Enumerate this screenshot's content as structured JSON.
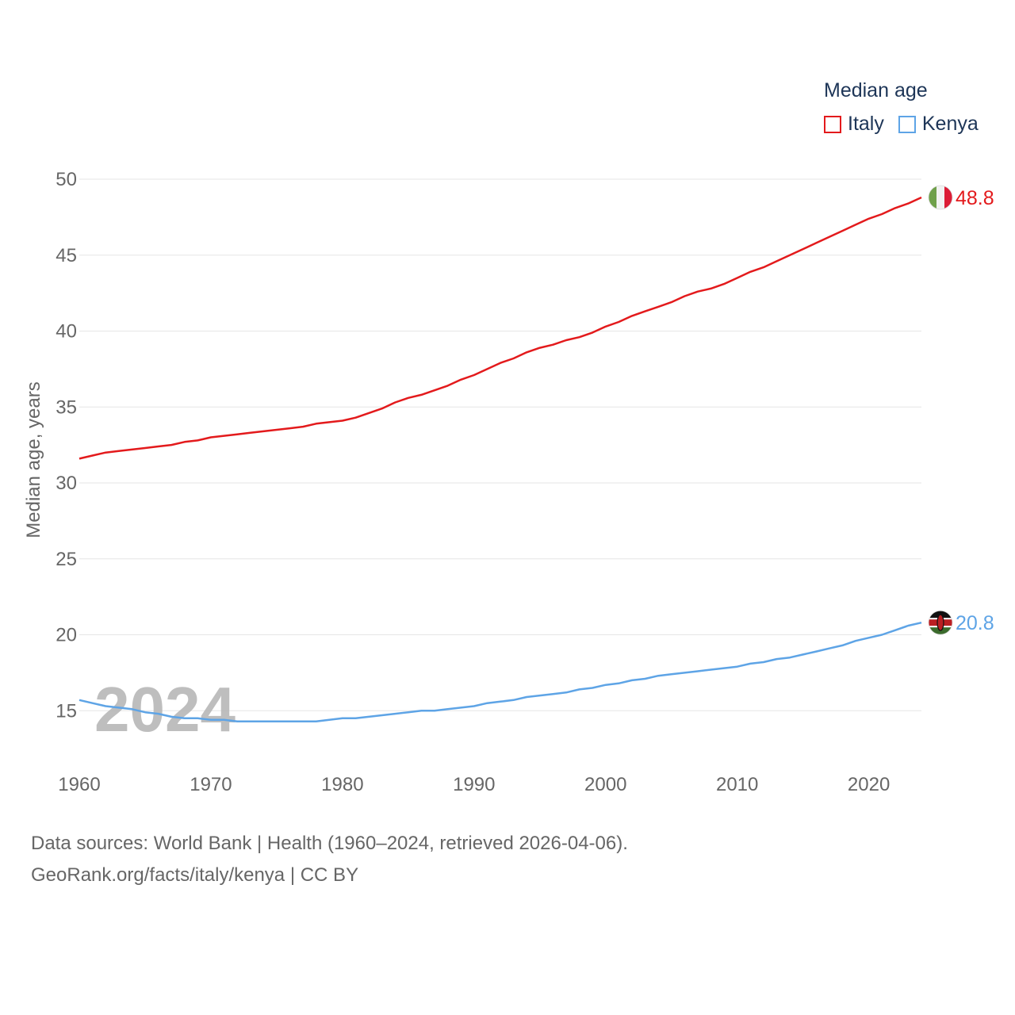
{
  "legend": {
    "title": "Median age",
    "items": [
      {
        "label": "Italy",
        "color": "#e31a1c"
      },
      {
        "label": "Kenya",
        "color": "#5ea4e6"
      }
    ]
  },
  "source": {
    "line1": "Data sources: World Bank | Health (1960–2024, retrieved 2026-04-06).",
    "line2": "GeoRank.org/facts/italy/kenya | CC BY"
  },
  "chart_data": {
    "type": "line",
    "title": "Median age",
    "ylabel": "Median age, years",
    "xlabel": "",
    "xlim": [
      1960,
      2024
    ],
    "ylim": [
      12,
      50
    ],
    "xticks": [
      1960,
      1970,
      1980,
      1990,
      2000,
      2010,
      2020
    ],
    "yticks": [
      15,
      20,
      25,
      30,
      35,
      40,
      45,
      50
    ],
    "year_watermark": "2024",
    "x": [
      1960,
      1961,
      1962,
      1963,
      1964,
      1965,
      1966,
      1967,
      1968,
      1969,
      1970,
      1971,
      1972,
      1973,
      1974,
      1975,
      1976,
      1977,
      1978,
      1979,
      1980,
      1981,
      1982,
      1983,
      1984,
      1985,
      1986,
      1987,
      1988,
      1989,
      1990,
      1991,
      1992,
      1993,
      1994,
      1995,
      1996,
      1997,
      1998,
      1999,
      2000,
      2001,
      2002,
      2003,
      2004,
      2005,
      2006,
      2007,
      2008,
      2009,
      2010,
      2011,
      2012,
      2013,
      2014,
      2015,
      2016,
      2017,
      2018,
      2019,
      2020,
      2021,
      2022,
      2023,
      2024
    ],
    "series": [
      {
        "name": "Italy",
        "color": "#e31a1c",
        "end_label": "48.8",
        "values": [
          31.6,
          31.8,
          32.0,
          32.1,
          32.2,
          32.3,
          32.4,
          32.5,
          32.7,
          32.8,
          33.0,
          33.1,
          33.2,
          33.3,
          33.4,
          33.5,
          33.6,
          33.7,
          33.9,
          34.0,
          34.1,
          34.3,
          34.6,
          34.9,
          35.3,
          35.6,
          35.8,
          36.1,
          36.4,
          36.8,
          37.1,
          37.5,
          37.9,
          38.2,
          38.6,
          38.9,
          39.1,
          39.4,
          39.6,
          39.9,
          40.3,
          40.6,
          41.0,
          41.3,
          41.6,
          41.9,
          42.3,
          42.6,
          42.8,
          43.1,
          43.5,
          43.9,
          44.2,
          44.6,
          45.0,
          45.4,
          45.8,
          46.2,
          46.6,
          47.0,
          47.4,
          47.7,
          48.1,
          48.4,
          48.8
        ]
      },
      {
        "name": "Kenya",
        "color": "#5ea4e6",
        "end_label": "20.8",
        "values": [
          15.7,
          15.5,
          15.3,
          15.2,
          15.1,
          14.9,
          14.8,
          14.6,
          14.5,
          14.5,
          14.4,
          14.4,
          14.3,
          14.3,
          14.3,
          14.3,
          14.3,
          14.3,
          14.3,
          14.4,
          14.5,
          14.5,
          14.6,
          14.7,
          14.8,
          14.9,
          15.0,
          15.0,
          15.1,
          15.2,
          15.3,
          15.5,
          15.6,
          15.7,
          15.9,
          16.0,
          16.1,
          16.2,
          16.4,
          16.5,
          16.7,
          16.8,
          17.0,
          17.1,
          17.3,
          17.4,
          17.5,
          17.6,
          17.7,
          17.8,
          17.9,
          18.1,
          18.2,
          18.4,
          18.5,
          18.7,
          18.9,
          19.1,
          19.3,
          19.6,
          19.8,
          20.0,
          20.3,
          20.6,
          20.8
        ]
      }
    ]
  }
}
